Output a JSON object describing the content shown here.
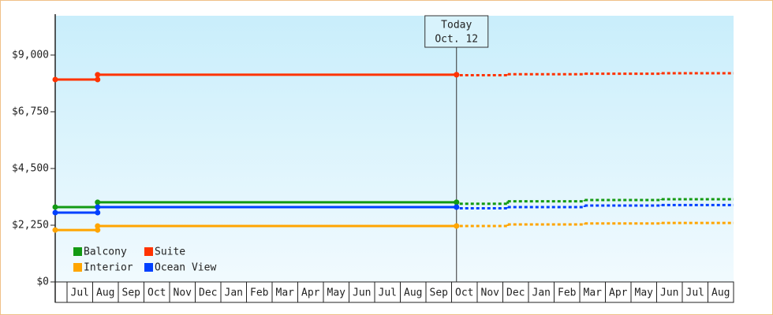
{
  "chart_data": {
    "type": "step",
    "categories": [
      null,
      "Jul",
      "Aug",
      "Sep",
      "Oct",
      "Nov",
      "Dec",
      "Jan",
      "Feb",
      "Mar",
      "Apr",
      "May",
      "Jun",
      "Jul",
      "Aug",
      "Sep",
      "Oct",
      "Nov",
      "Dec",
      "Jan",
      "Feb",
      "Mar",
      "Apr",
      "May",
      "Jun",
      "Jul",
      "Aug"
    ],
    "ylim": [
      0,
      10560
    ],
    "yticks": [
      {
        "value": 0,
        "label": "$0"
      },
      {
        "value": 2250,
        "label": "$2,250"
      },
      {
        "value": 4500,
        "label": "$4,500"
      },
      {
        "value": 6750,
        "label": "$6,750"
      },
      {
        "value": 9000,
        "label": "$9,000"
      }
    ],
    "annotation": [
      "Today",
      "Oct. 12"
    ],
    "legend": "lower left",
    "series": [
      {
        "name": "Balcony",
        "color": "#139a13",
        "values": [
          2970,
          null,
          3160,
          null,
          null,
          null,
          null,
          null,
          null,
          null,
          null,
          null,
          null,
          null,
          null,
          null,
          3160,
          null,
          null,
          null,
          null,
          null,
          null,
          null,
          null,
          null,
          null
        ],
        "forecast": [
          null,
          null,
          null,
          null,
          null,
          null,
          null,
          null,
          null,
          null,
          null,
          null,
          null,
          null,
          null,
          null,
          3100,
          null,
          3200,
          null,
          null,
          3250,
          null,
          null,
          3280,
          null,
          null
        ]
      },
      {
        "name": "Suite",
        "color": "#ff3300",
        "values": [
          8030,
          null,
          8220,
          null,
          null,
          null,
          null,
          null,
          null,
          null,
          null,
          null,
          null,
          null,
          null,
          null,
          8220,
          null,
          null,
          null,
          null,
          null,
          null,
          null,
          null,
          null,
          null
        ],
        "forecast": [
          null,
          null,
          null,
          null,
          null,
          null,
          null,
          null,
          null,
          null,
          null,
          null,
          null,
          null,
          null,
          null,
          8200,
          null,
          8240,
          null,
          null,
          8260,
          null,
          null,
          8280,
          null,
          null
        ]
      },
      {
        "name": "Interior",
        "color": "#ffa500",
        "values": [
          2060,
          null,
          2220,
          null,
          null,
          null,
          null,
          null,
          null,
          null,
          null,
          null,
          null,
          null,
          null,
          null,
          2220,
          null,
          null,
          null,
          null,
          null,
          null,
          null,
          null,
          null,
          null
        ],
        "forecast": [
          null,
          null,
          null,
          null,
          null,
          null,
          null,
          null,
          null,
          null,
          null,
          null,
          null,
          null,
          null,
          null,
          2220,
          null,
          2280,
          null,
          null,
          2320,
          null,
          null,
          2340,
          null,
          null
        ]
      },
      {
        "name": "Ocean View",
        "color": "#0040ff",
        "values": [
          2750,
          null,
          2970,
          null,
          null,
          null,
          null,
          null,
          null,
          null,
          null,
          null,
          null,
          null,
          null,
          null,
          2970,
          null,
          null,
          null,
          null,
          null,
          null,
          null,
          null,
          null,
          null
        ],
        "forecast": [
          null,
          null,
          null,
          null,
          null,
          null,
          null,
          null,
          null,
          null,
          null,
          null,
          null,
          null,
          null,
          null,
          2920,
          null,
          2970,
          null,
          null,
          3030,
          null,
          null,
          3050,
          null,
          null
        ]
      }
    ]
  }
}
